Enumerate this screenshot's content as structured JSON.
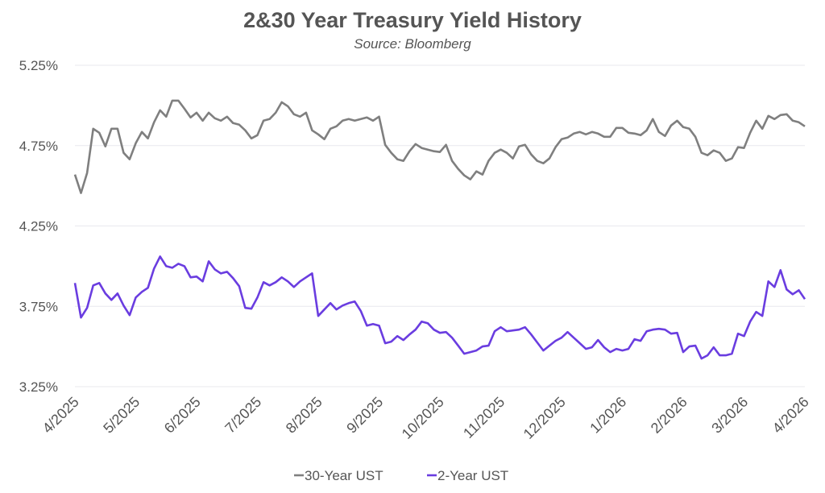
{
  "chart_data": {
    "type": "line",
    "title": "2&30 Year Treasury Yield History",
    "subtitle": "Source: Bloomberg",
    "xlabel": "",
    "ylabel": "",
    "x_unit": "months since 4/2025",
    "x_start": 0,
    "x_step": 0.1,
    "xlim": [
      0,
      12
    ],
    "ylim": [
      3.25,
      5.25
    ],
    "grid": true,
    "legend_position": "bottom-center",
    "x_tick_labels": [
      "4/2025",
      "5/2025",
      "6/2025",
      "7/2025",
      "8/2025",
      "9/2025",
      "10/2025",
      "11/2025",
      "12/2025",
      "1/2026",
      "2/2026",
      "3/2026",
      "4/2026"
    ],
    "y_ticks": [
      3.25,
      3.75,
      4.25,
      4.75,
      5.25
    ],
    "y_tick_labels": [
      "3.25%",
      "3.75%",
      "4.25%",
      "4.75%",
      "5.25%"
    ],
    "series": [
      {
        "name": "30-Year UST",
        "color": "#7f7f7f",
        "values": [
          4.57,
          4.455,
          4.58,
          4.855,
          4.83,
          4.745,
          4.855,
          4.855,
          4.705,
          4.665,
          4.765,
          4.835,
          4.795,
          4.895,
          4.97,
          4.93,
          5.03,
          5.03,
          4.98,
          4.925,
          4.955,
          4.905,
          4.955,
          4.92,
          4.905,
          4.93,
          4.89,
          4.88,
          4.845,
          4.795,
          4.815,
          4.905,
          4.915,
          4.955,
          5.02,
          4.995,
          4.945,
          4.93,
          4.955,
          4.845,
          4.82,
          4.79,
          4.855,
          4.87,
          4.905,
          4.915,
          4.905,
          4.915,
          4.925,
          4.905,
          4.93,
          4.755,
          4.705,
          4.665,
          4.655,
          4.715,
          4.76,
          4.735,
          4.725,
          4.715,
          4.71,
          4.755,
          4.655,
          4.605,
          4.565,
          4.54,
          4.59,
          4.57,
          4.655,
          4.705,
          4.725,
          4.705,
          4.67,
          4.745,
          4.755,
          4.695,
          4.655,
          4.64,
          4.67,
          4.74,
          4.79,
          4.8,
          4.825,
          4.835,
          4.82,
          4.835,
          4.825,
          4.805,
          4.805,
          4.86,
          4.86,
          4.83,
          4.825,
          4.815,
          4.845,
          4.915,
          4.835,
          4.81,
          4.875,
          4.905,
          4.865,
          4.855,
          4.805,
          4.705,
          4.69,
          4.72,
          4.705,
          4.655,
          4.67,
          4.74,
          4.735,
          4.83,
          4.905,
          4.855,
          4.935,
          4.915,
          4.94,
          4.945,
          4.905,
          4.895,
          4.87
        ]
      },
      {
        "name": "2-Year UST",
        "color": "#6a3de0",
        "values": [
          3.895,
          3.68,
          3.74,
          3.88,
          3.895,
          3.83,
          3.79,
          3.83,
          3.755,
          3.695,
          3.805,
          3.84,
          3.865,
          3.985,
          4.06,
          4.0,
          3.99,
          4.015,
          4.0,
          3.93,
          3.935,
          3.905,
          4.03,
          3.98,
          3.955,
          3.965,
          3.925,
          3.875,
          3.74,
          3.735,
          3.805,
          3.9,
          3.88,
          3.9,
          3.93,
          3.905,
          3.87,
          3.905,
          3.93,
          3.955,
          3.69,
          3.73,
          3.77,
          3.73,
          3.755,
          3.77,
          3.78,
          3.72,
          3.63,
          3.64,
          3.63,
          3.52,
          3.53,
          3.565,
          3.54,
          3.575,
          3.605,
          3.655,
          3.645,
          3.605,
          3.585,
          3.59,
          3.555,
          3.505,
          3.455,
          3.465,
          3.475,
          3.5,
          3.505,
          3.595,
          3.62,
          3.595,
          3.6,
          3.605,
          3.62,
          3.575,
          3.525,
          3.475,
          3.505,
          3.535,
          3.555,
          3.59,
          3.555,
          3.52,
          3.485,
          3.495,
          3.54,
          3.495,
          3.465,
          3.485,
          3.475,
          3.485,
          3.545,
          3.535,
          3.595,
          3.605,
          3.61,
          3.605,
          3.58,
          3.585,
          3.465,
          3.5,
          3.505,
          3.425,
          3.445,
          3.495,
          3.445,
          3.445,
          3.455,
          3.58,
          3.565,
          3.655,
          3.715,
          3.69,
          3.905,
          3.87,
          3.975,
          3.855,
          3.825,
          3.85,
          3.795
        ]
      }
    ],
    "gridline_color": "#e8e8ee",
    "text_color": "#555555"
  }
}
